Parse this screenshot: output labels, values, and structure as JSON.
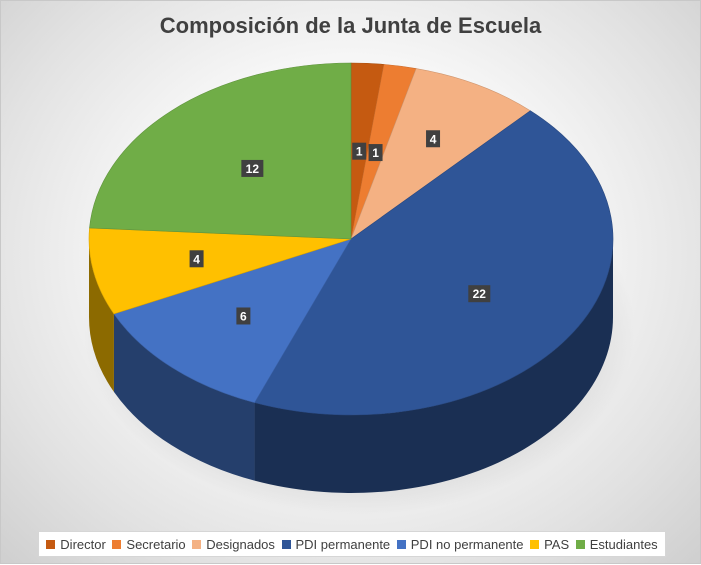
{
  "chart_data": {
    "type": "pie",
    "title": "Composición de la Junta de Escuela",
    "categories": [
      "Director",
      "Secretario",
      "Designados",
      "PDI permanente",
      "PDI no permanente",
      "PAS",
      "Estudiantes"
    ],
    "values": [
      1,
      1,
      4,
      22,
      6,
      4,
      12
    ],
    "colors": [
      "#C55A11",
      "#ED7D31",
      "#F4B183",
      "#2F5597",
      "#4472C4",
      "#FFC000",
      "#70AD47"
    ],
    "data_labels": [
      "1",
      "1",
      "4",
      "22",
      "6",
      "4",
      "12"
    ],
    "legend_position": "bottom",
    "style": "3d"
  }
}
